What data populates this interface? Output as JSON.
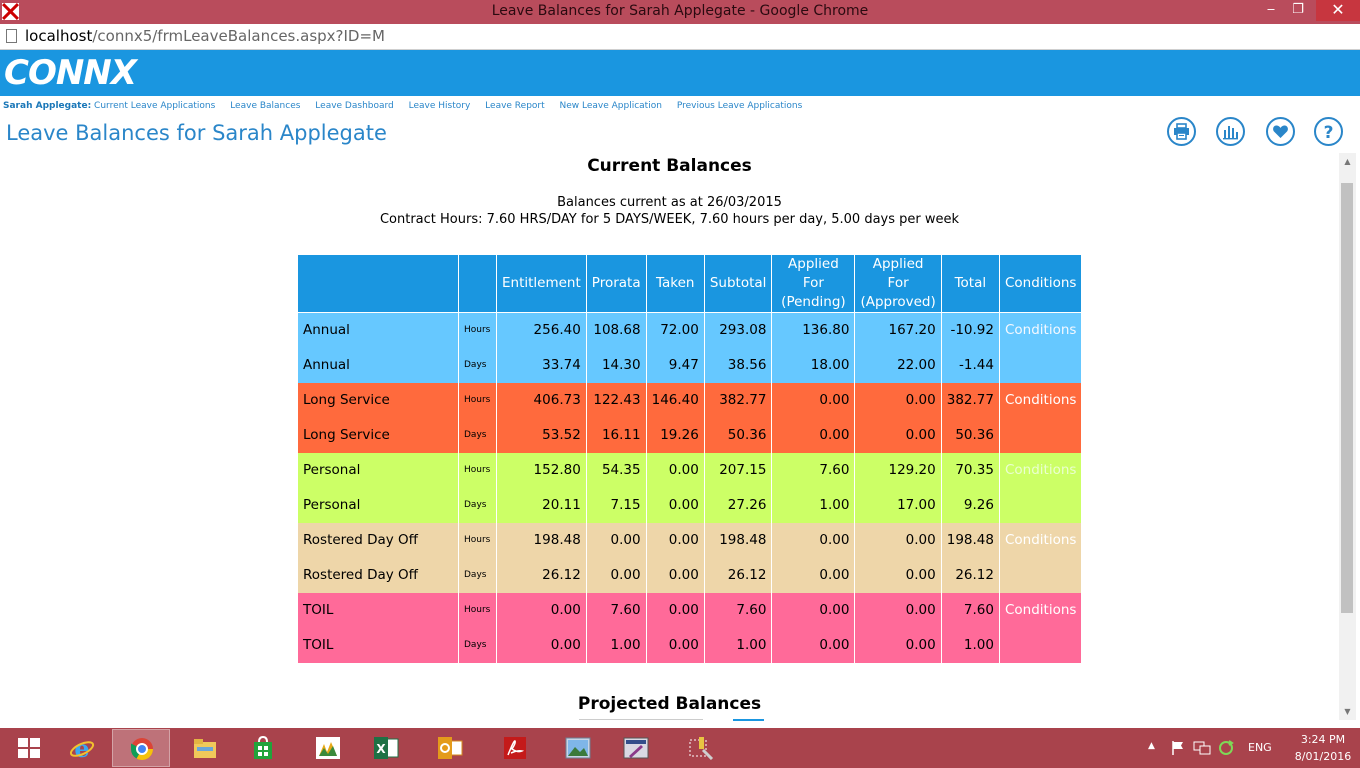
{
  "window": {
    "title": "Leave Balances for Sarah Applegate - Google Chrome",
    "minimize": "‒",
    "restore": "❐",
    "close": "✕"
  },
  "address": {
    "host": "localhost",
    "path": "/connx5/frmLeaveBalances.aspx?ID=M"
  },
  "brand": {
    "logo": "CONNX"
  },
  "nav": {
    "user": "Sarah Applegate:",
    "links": [
      "Current Leave Applications",
      "Leave Balances",
      "Leave Dashboard",
      "Leave History",
      "Leave Report",
      "New Leave Application",
      "Previous Leave Applications"
    ]
  },
  "page": {
    "title": "Leave Balances for Sarah Applegate"
  },
  "toolbar": {
    "icons": [
      "print-icon",
      "chart-icon",
      "favourite-icon",
      "help-icon"
    ]
  },
  "current": {
    "heading": "Current Balances",
    "as_at": "Balances current as at 26/03/2015",
    "contract": "Contract Hours:  7.60 HRS/DAY for 5 DAYS/WEEK, 7.60 hours per day, 5.00 days per week"
  },
  "table": {
    "headers": {
      "blank1": "",
      "blank2": "",
      "entitlement": "Entitlement",
      "prorata": "Prorata",
      "taken": "Taken",
      "subtotal": "Subtotal",
      "pending_1": "Applied For",
      "pending_2": "(Pending)",
      "approved_1": "Applied For",
      "approved_2": "(Approved)",
      "total": "Total",
      "conditions": "Conditions"
    },
    "rows": [
      {
        "type": "Annual",
        "unit": "Hours",
        "entitlement": "256.40",
        "prorata": "108.68",
        "taken": "72.00",
        "subtotal": "293.08",
        "pending": "136.80",
        "approved": "167.20",
        "total": "-10.92",
        "cond": "Conditions"
      },
      {
        "type": "Annual",
        "unit": "Days",
        "entitlement": "33.74",
        "prorata": "14.30",
        "taken": "9.47",
        "subtotal": "38.56",
        "pending": "18.00",
        "approved": "22.00",
        "total": "-1.44",
        "cond": ""
      },
      {
        "type": "Long Service",
        "unit": "Hours",
        "entitlement": "406.73",
        "prorata": "122.43",
        "taken": "146.40",
        "subtotal": "382.77",
        "pending": "0.00",
        "approved": "0.00",
        "total": "382.77",
        "cond": "Conditions"
      },
      {
        "type": "Long Service",
        "unit": "Days",
        "entitlement": "53.52",
        "prorata": "16.11",
        "taken": "19.26",
        "subtotal": "50.36",
        "pending": "0.00",
        "approved": "0.00",
        "total": "50.36",
        "cond": ""
      },
      {
        "type": "Personal",
        "unit": "Hours",
        "entitlement": "152.80",
        "prorata": "54.35",
        "taken": "0.00",
        "subtotal": "207.15",
        "pending": "7.60",
        "approved": "129.20",
        "total": "70.35",
        "cond": "Conditions"
      },
      {
        "type": "Personal",
        "unit": "Days",
        "entitlement": "20.11",
        "prorata": "7.15",
        "taken": "0.00",
        "subtotal": "27.26",
        "pending": "1.00",
        "approved": "17.00",
        "total": "9.26",
        "cond": ""
      },
      {
        "type": "Rostered Day Off",
        "unit": "Hours",
        "entitlement": "198.48",
        "prorata": "0.00",
        "taken": "0.00",
        "subtotal": "198.48",
        "pending": "0.00",
        "approved": "0.00",
        "total": "198.48",
        "cond": "Conditions"
      },
      {
        "type": "Rostered Day Off",
        "unit": "Days",
        "entitlement": "26.12",
        "prorata": "0.00",
        "taken": "0.00",
        "subtotal": "26.12",
        "pending": "0.00",
        "approved": "0.00",
        "total": "26.12",
        "cond": ""
      },
      {
        "type": "TOIL",
        "unit": "Hours",
        "entitlement": "0.00",
        "prorata": "7.60",
        "taken": "0.00",
        "subtotal": "7.60",
        "pending": "0.00",
        "approved": "0.00",
        "total": "7.60",
        "cond": "Conditions"
      },
      {
        "type": "TOIL",
        "unit": "Days",
        "entitlement": "0.00",
        "prorata": "1.00",
        "taken": "0.00",
        "subtotal": "1.00",
        "pending": "0.00",
        "approved": "0.00",
        "total": "1.00",
        "cond": ""
      }
    ],
    "row_colors": {
      "annual": "#66c8ff",
      "long_service": "#ff6a3d",
      "personal": "#ccff66",
      "rostered_day_off": "#eed6a9",
      "toil": "#ff6a99",
      "header": "#1a96e0"
    }
  },
  "projected": {
    "heading": "Projected Balances"
  },
  "taskbar": {
    "apps": [
      "start-icon",
      "internet-explorer-icon",
      "chrome-icon",
      "file-explorer-icon",
      "store-icon",
      "dynamics-icon",
      "excel-icon",
      "outlook-icon",
      "acrobat-icon",
      "photos-icon",
      "visual-studio-icon",
      "tools-icon"
    ],
    "language": "ENG",
    "time": "3:24 PM",
    "date": "8/01/2016"
  }
}
